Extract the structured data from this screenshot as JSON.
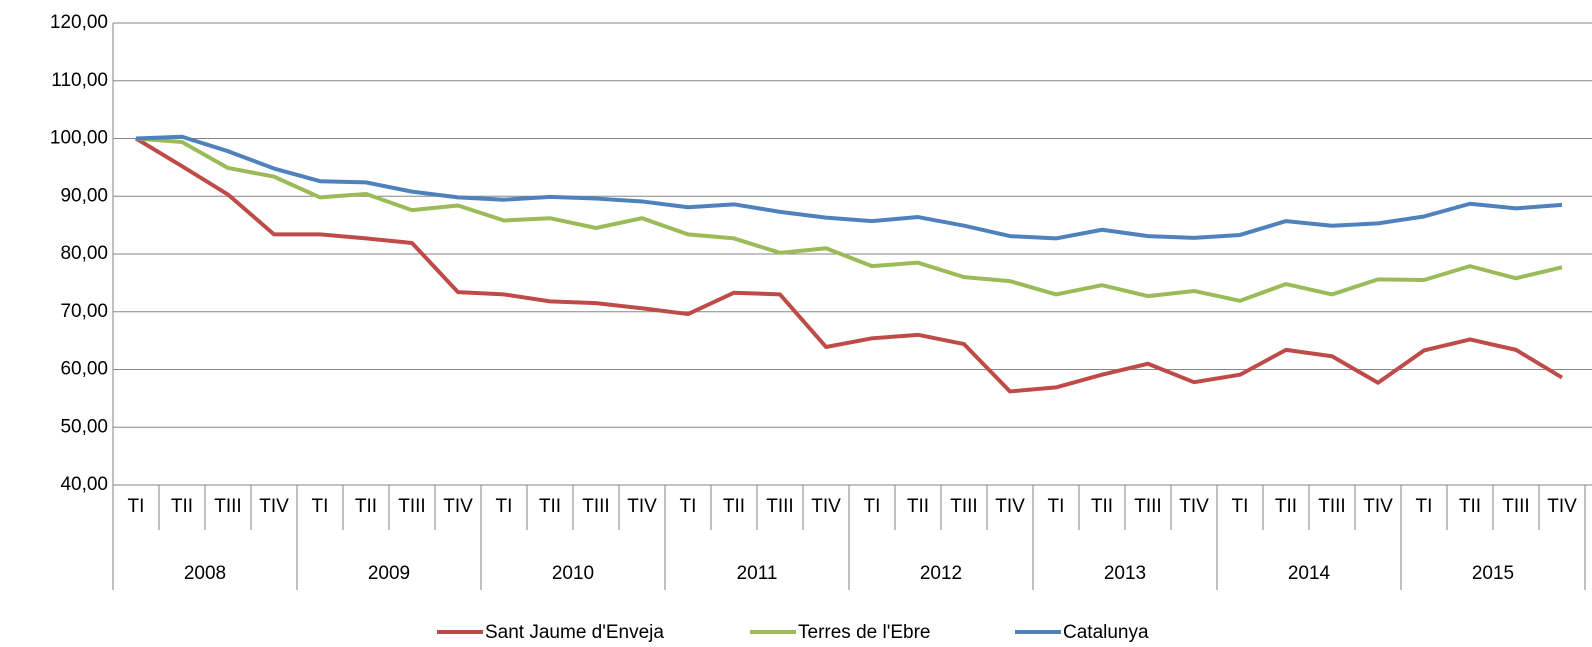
{
  "chart_data": {
    "type": "line",
    "categories": [
      "TI",
      "TII",
      "TIII",
      "TIV",
      "TI",
      "TII",
      "TIII",
      "TIV",
      "TI",
      "TII",
      "TIII",
      "TIV",
      "TI",
      "TII",
      "TIII",
      "TIV",
      "TI",
      "TII",
      "TIII",
      "TIV",
      "TI",
      "TII",
      "TIII",
      "TIV",
      "TI",
      "TII",
      "TIII",
      "TIV",
      "TI",
      "TII",
      "TIII",
      "TIV"
    ],
    "years": [
      "2008",
      "2009",
      "2010",
      "2011",
      "2012",
      "2013",
      "2014",
      "2015"
    ],
    "ylim": [
      40,
      120
    ],
    "yticks": [
      {
        "value": 40,
        "label": "40,00"
      },
      {
        "value": 50,
        "label": "50,00"
      },
      {
        "value": 60,
        "label": "60,00"
      },
      {
        "value": 70,
        "label": "70,00"
      },
      {
        "value": 80,
        "label": "80,00"
      },
      {
        "value": 90,
        "label": "90,00"
      },
      {
        "value": 100,
        "label": "100,00"
      },
      {
        "value": 110,
        "label": "110,00"
      },
      {
        "value": 120,
        "label": "120,00"
      }
    ],
    "grid": true,
    "legend": "bottom",
    "series": [
      {
        "name": "Sant Jaume d'Enveja",
        "color": "#be4b48",
        "values": [
          100,
          95.2,
          90.3,
          83.4,
          83.4,
          82.7,
          81.9,
          73.4,
          73.0,
          71.8,
          71.5,
          70.6,
          69.6,
          73.3,
          73.0,
          63.9,
          65.4,
          66.0,
          64.4,
          56.2,
          56.9,
          59.1,
          61.0,
          57.8,
          59.1,
          63.4,
          62.3,
          57.7,
          63.3,
          65.2,
          63.4,
          58.6
        ]
      },
      {
        "name": "Terres de l'Ebre",
        "color": "#9bbb59",
        "values": [
          100,
          99.4,
          94.9,
          93.4,
          89.8,
          90.4,
          87.6,
          88.4,
          85.8,
          86.2,
          84.5,
          86.2,
          83.4,
          82.7,
          80.2,
          81.0,
          77.9,
          78.5,
          76.0,
          75.3,
          73.0,
          74.6,
          72.7,
          73.6,
          71.9,
          74.8,
          73.0,
          75.6,
          75.5,
          77.9,
          75.8,
          77.7
        ]
      },
      {
        "name": "Catalunya",
        "color": "#4f81bd",
        "values": [
          100,
          100.3,
          97.8,
          94.8,
          92.6,
          92.4,
          90.8,
          89.8,
          89.4,
          89.9,
          89.6,
          89.1,
          88.1,
          88.6,
          87.3,
          86.3,
          85.7,
          86.4,
          84.9,
          83.1,
          82.7,
          84.2,
          83.1,
          82.8,
          83.3,
          85.7,
          84.9,
          85.3,
          86.5,
          88.7,
          87.9,
          88.5
        ]
      }
    ]
  }
}
